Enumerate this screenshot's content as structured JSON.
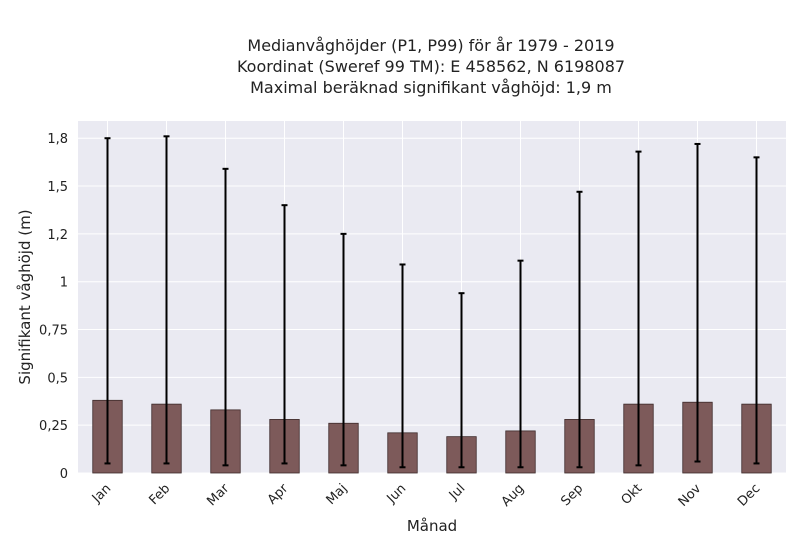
{
  "chart_data": {
    "type": "bar",
    "title_lines": [
      "Medianvåghöjder (P1, P99) för år 1979 - 2019",
      "Koordinat (Sweref 99 TM): E 458562, N 6198087",
      "Maximal beräknad signifikant våghöjd: 1,9 m"
    ],
    "xlabel": "Månad",
    "ylabel": "Signifikant våghöjd (m)",
    "categories": [
      "Jan",
      "Feb",
      "Mar",
      "Apr",
      "Maj",
      "Jun",
      "Jul",
      "Aug",
      "Sep",
      "Okt",
      "Nov",
      "Dec"
    ],
    "series": [
      {
        "values": [
          0.38,
          0.36,
          0.33,
          0.28,
          0.26,
          0.21,
          0.19,
          0.22,
          0.28,
          0.36,
          0.37,
          0.36
        ],
        "p1": [
          0.05,
          0.05,
          0.04,
          0.05,
          0.04,
          0.03,
          0.03,
          0.03,
          0.03,
          0.04,
          0.06,
          0.05
        ],
        "p99": [
          1.75,
          1.76,
          1.59,
          1.4,
          1.25,
          1.09,
          0.94,
          1.11,
          1.47,
          1.68,
          1.72,
          1.65
        ]
      }
    ],
    "ylim": [
      0,
      1.84
    ],
    "yticks": [
      0,
      0.25,
      0.5,
      0.75,
      1,
      1.25,
      1.5,
      1.75
    ],
    "ytick_labels": [
      "0",
      "0,25",
      "0,5",
      "0,75",
      "1",
      "1,2",
      "1,5",
      "1,8"
    ],
    "grid": true,
    "colors": {
      "bar_fill": "#7d5a5a",
      "bar_edge": "#3d2a2a",
      "error_bar": "#000000",
      "plot_background": "#eaeaf2",
      "grid": "#ffffff"
    }
  }
}
